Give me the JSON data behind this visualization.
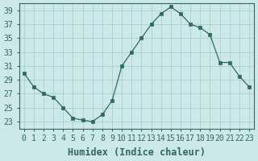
{
  "x": [
    0,
    1,
    2,
    3,
    4,
    5,
    6,
    7,
    8,
    9,
    10,
    11,
    12,
    13,
    14,
    15,
    16,
    17,
    18,
    19,
    20,
    21,
    22,
    23
  ],
  "y": [
    30,
    28,
    27,
    26.5,
    25,
    23.5,
    23.2,
    23.0,
    24.0,
    26.0,
    31,
    33,
    35,
    37,
    38.5,
    39.5,
    38.5,
    37.0,
    36.5,
    35.5,
    31.5,
    31.5,
    29.5,
    28.0
  ],
  "line_color": "#2e6b5e",
  "marker": "s",
  "marker_size": 2.5,
  "bg_color": "#cce8e8",
  "grid_color": "#aad4d4",
  "xlabel": "Humidex (Indice chaleur)",
  "xlim": [
    -0.5,
    23.5
  ],
  "ylim": [
    22,
    40
  ],
  "yticks": [
    23,
    25,
    27,
    29,
    31,
    33,
    35,
    37,
    39
  ],
  "xticks": [
    0,
    1,
    2,
    3,
    4,
    5,
    6,
    7,
    8,
    9,
    10,
    11,
    12,
    13,
    14,
    15,
    16,
    17,
    18,
    19,
    20,
    21,
    22,
    23
  ],
  "tick_color": "#2e6b5e",
  "xlabel_fontsize": 8.5,
  "tick_fontsize": 7.0
}
